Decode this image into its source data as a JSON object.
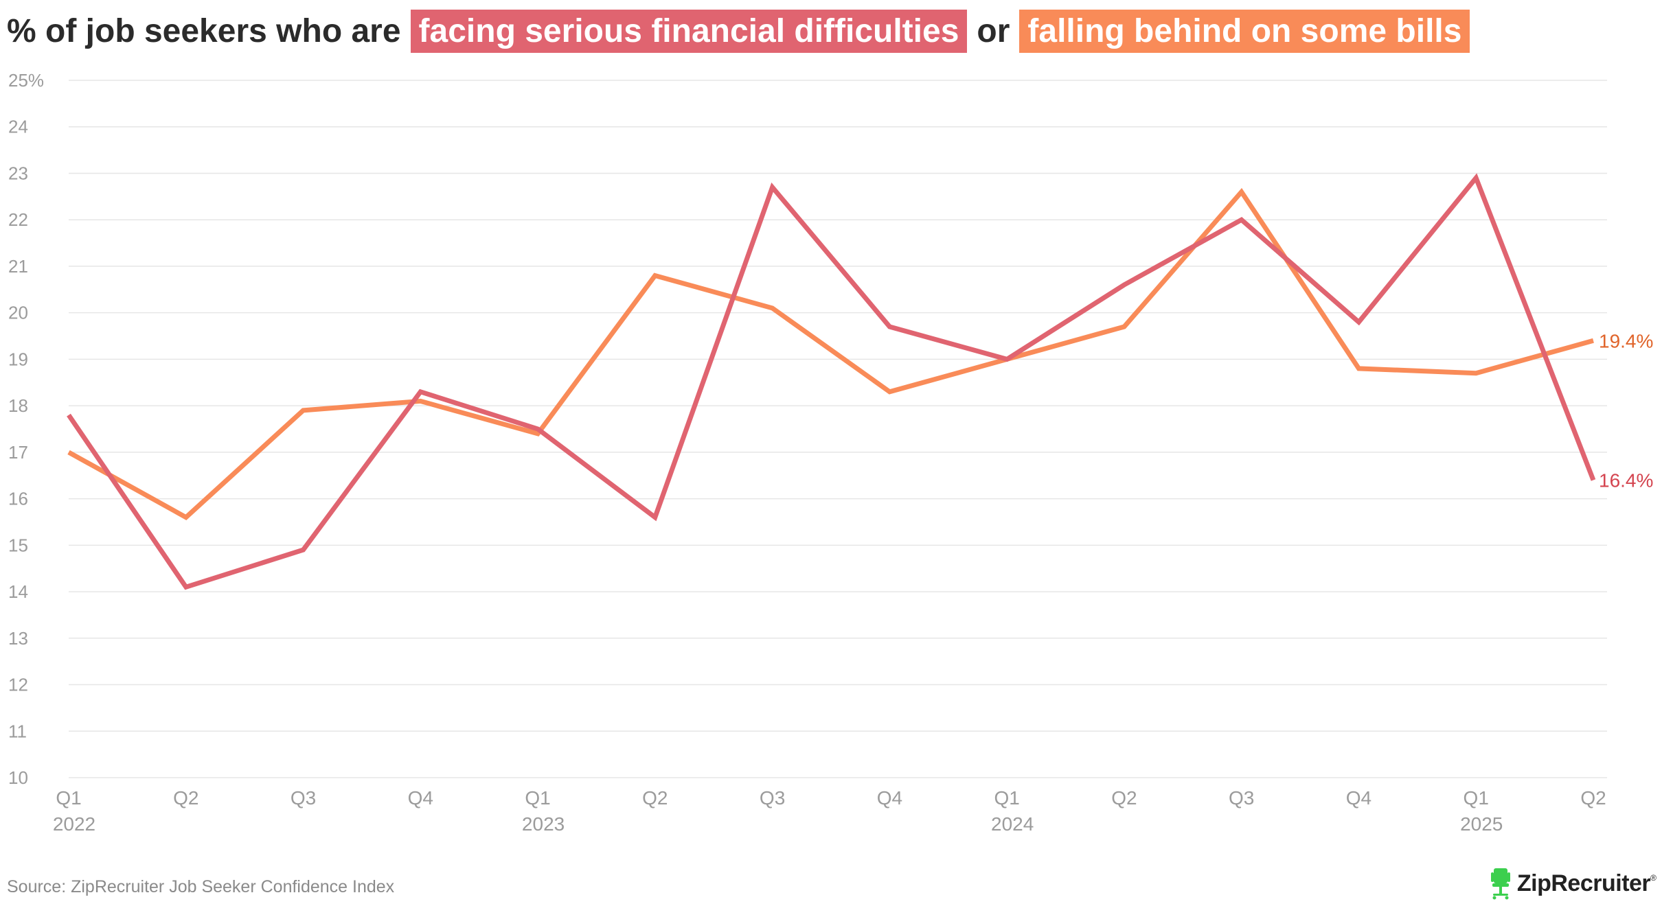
{
  "title": {
    "prefix": "% of job seekers who are",
    "highlight1": "facing serious financial difficulties",
    "connector": "or",
    "highlight2": "falling behind on some bills"
  },
  "colors": {
    "series1": "#e06470",
    "series2": "#f98b58",
    "end_label1": "#d4444f",
    "end_label2": "#e0642a",
    "grid": "#e6e6e6",
    "tick": "#9b9b9b"
  },
  "chart_data": {
    "type": "line",
    "x": [
      "Q1 2022",
      "Q2 2022",
      "Q3 2022",
      "Q4 2022",
      "Q1 2023",
      "Q2 2023",
      "Q3 2023",
      "Q4 2023",
      "Q1 2024",
      "Q2 2024",
      "Q3 2024",
      "Q4 2024",
      "Q1 2025",
      "Q2 2025"
    ],
    "x_tick_labels": [
      {
        "quarter": "Q1",
        "year": "2022"
      },
      {
        "quarter": "Q2",
        "year": ""
      },
      {
        "quarter": "Q3",
        "year": ""
      },
      {
        "quarter": "Q4",
        "year": ""
      },
      {
        "quarter": "Q1",
        "year": "2023"
      },
      {
        "quarter": "Q2",
        "year": ""
      },
      {
        "quarter": "Q3",
        "year": ""
      },
      {
        "quarter": "Q4",
        "year": ""
      },
      {
        "quarter": "Q1",
        "year": "2024"
      },
      {
        "quarter": "Q2",
        "year": ""
      },
      {
        "quarter": "Q3",
        "year": ""
      },
      {
        "quarter": "Q4",
        "year": ""
      },
      {
        "quarter": "Q1",
        "year": "2025"
      },
      {
        "quarter": "Q2",
        "year": ""
      }
    ],
    "y_ticks": [
      10,
      11,
      12,
      13,
      14,
      15,
      16,
      17,
      18,
      19,
      20,
      21,
      22,
      23,
      24,
      25
    ],
    "y_tick_labels": [
      "10",
      "11",
      "12",
      "13",
      "14",
      "15",
      "16",
      "17",
      "18",
      "19",
      "20",
      "21",
      "22",
      "23",
      "24",
      "25%"
    ],
    "ylim": [
      10,
      25
    ],
    "grid": true,
    "series": [
      {
        "name": "facing serious financial difficulties",
        "values": [
          17.8,
          14.1,
          14.9,
          18.3,
          17.5,
          15.6,
          22.7,
          19.7,
          19.0,
          20.6,
          22.0,
          19.8,
          22.9,
          16.4
        ],
        "end_label": "16.4%"
      },
      {
        "name": "falling behind on some bills",
        "values": [
          17.0,
          15.6,
          17.9,
          18.1,
          17.4,
          20.8,
          20.1,
          18.3,
          19.0,
          19.7,
          22.6,
          18.8,
          18.7,
          19.4
        ],
        "end_label": "19.4%"
      }
    ]
  },
  "footer": {
    "source": "Source: ZipRecruiter Job Seeker Confidence Index",
    "brand": "ZipRecruiter",
    "brand_mark": "®",
    "brand_icon": "chair-icon"
  }
}
